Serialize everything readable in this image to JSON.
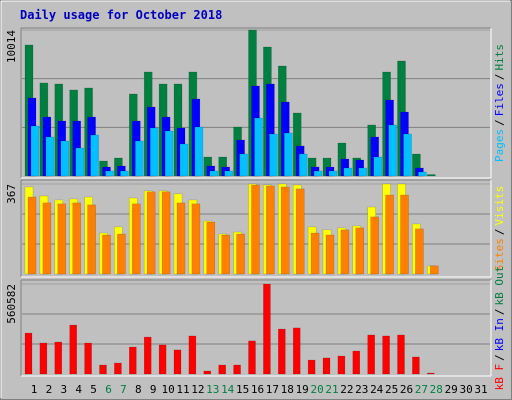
{
  "chart_data": [
    {
      "type": "bar",
      "title": "Daily usage for October 2018",
      "legend_separator": "/",
      "ylim": [
        0,
        10014
      ],
      "yticks": [
        10014
      ],
      "series": [
        {
          "name": "Pages",
          "color": "#00c0ff",
          "values": [
            3430,
            2675,
            2401,
            1921,
            2813,
            343,
            343,
            2401,
            3293,
            3087,
            2195,
            3361,
            343,
            343,
            1509,
            3979,
            2881,
            2950,
            1509,
            343,
            343,
            549,
            549,
            1303,
            3499,
            2881,
            274,
            0,
            0,
            0,
            0
          ]
        },
        {
          "name": "Files",
          "color": "#0000ff",
          "values": [
            5351,
            4047,
            3773,
            3773,
            4047,
            617,
            686,
            3773,
            4733,
            4047,
            3293,
            5282,
            686,
            617,
            2470,
            6174,
            6311,
            5076,
            2058,
            617,
            617,
            1166,
            1098,
            2675,
            5214,
            4390,
            549,
            0,
            0,
            0,
            0
          ]
        },
        {
          "name": "Hits",
          "color": "#008040",
          "values": [
            8987,
            6380,
            6311,
            5900,
            6037,
            1029,
            1235,
            5625,
            7134,
            6311,
            6311,
            7134,
            1303,
            1303,
            3361,
            10014,
            8849,
            7546,
            4322,
            1235,
            1235,
            2264,
            1235,
            3499,
            7134,
            7889,
            1509,
            100,
            0,
            0,
            0
          ]
        }
      ]
    },
    {
      "type": "bar",
      "legend_separator": "/",
      "ylim": [
        0,
        367
      ],
      "yticks": [
        367
      ],
      "series": [
        {
          "name": "Sites",
          "color": "#ff8000",
          "values": [
            314,
            290,
            286,
            290,
            282,
            159,
            163,
            286,
            335,
            335,
            290,
            286,
            212,
            159,
            163,
            363,
            359,
            355,
            347,
            167,
            159,
            180,
            188,
            233,
            322,
            322,
            184,
            33,
            0,
            0,
            0
          ]
        },
        {
          "name": "Visits",
          "color": "#ffff00",
          "values": [
            355,
            318,
            302,
            306,
            314,
            167,
            192,
            310,
            339,
            339,
            327,
            302,
            216,
            163,
            171,
            367,
            363,
            367,
            363,
            192,
            180,
            188,
            196,
            273,
            367,
            367,
            204,
            33,
            0,
            0,
            0
          ]
        }
      ]
    },
    {
      "type": "bar",
      "legend_separator": "/",
      "ylim": [
        0,
        560582
      ],
      "yticks": [
        560582
      ],
      "categories": [
        "1",
        "2",
        "3",
        "4",
        "5",
        "6",
        "7",
        "8",
        "9",
        "10",
        "11",
        "12",
        "13",
        "14",
        "15",
        "16",
        "17",
        "18",
        "19",
        "20",
        "21",
        "22",
        "23",
        "24",
        "25",
        "26",
        "27",
        "28",
        "29",
        "30",
        "31"
      ],
      "category_colors": [
        "#000000",
        "#000000",
        "#000000",
        "#000000",
        "#000000",
        "#008040",
        "#008040",
        "#000000",
        "#000000",
        "#000000",
        "#000000",
        "#000000",
        "#008040",
        "#008040",
        "#000000",
        "#000000",
        "#000000",
        "#000000",
        "#000000",
        "#008040",
        "#008040",
        "#000000",
        "#000000",
        "#000000",
        "#000000",
        "#000000",
        "#008040",
        "#008040",
        "#000000",
        "#000000",
        "#000000"
      ],
      "series": [
        {
          "name": "kB F",
          "color": "#ff0000",
          "values": [
            255000,
            193000,
            199000,
            305000,
            193000,
            56000,
            68500,
            168000,
            230000,
            181000,
            150000,
            237000,
            18700,
            56000,
            56000,
            206000,
            560582,
            280000,
            287000,
            87000,
            100000,
            112000,
            143000,
            243000,
            237000,
            243000,
            106000,
            6000,
            0,
            0,
            0
          ]
        },
        {
          "name": "kB In",
          "color": "#0000ff"
        },
        {
          "name": "kB Out",
          "color": "#008040"
        }
      ]
    }
  ]
}
